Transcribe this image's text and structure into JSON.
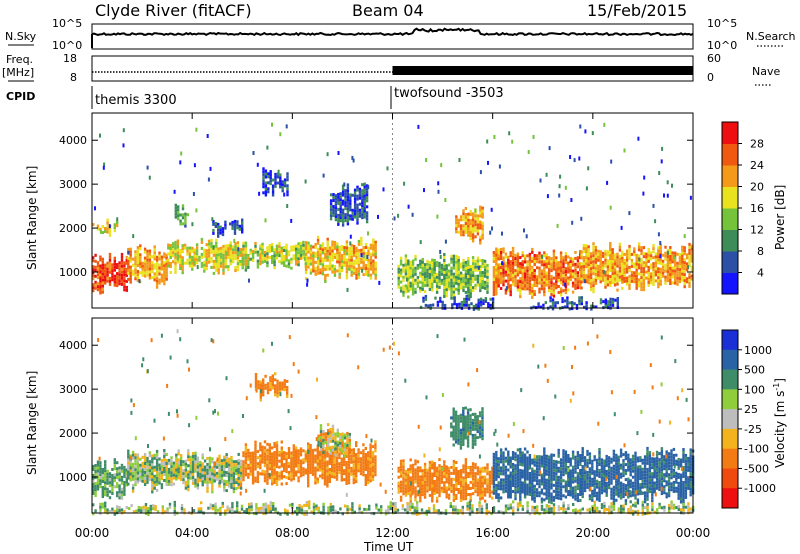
{
  "header": {
    "station": "Clyde River (fitACF)",
    "beam": "Beam 04",
    "date": "15/Feb/2015"
  },
  "left_labels": {
    "nsky": "N.Sky",
    "freq": "Freq.",
    "freq_unit": "[MHz]",
    "cpid": "CPID"
  },
  "right_labels": {
    "nsearch": "N.Search",
    "nave": "Nave"
  },
  "noise_axis": {
    "top": "10^5",
    "bottom": "10^0"
  },
  "freq_axis": {
    "top": "18",
    "bottom": "8"
  },
  "nave_axis": {
    "top": "60",
    "bottom": "0"
  },
  "cpid_segments": [
    {
      "label": "themis 3300",
      "start_hour": 0,
      "end_hour": 12
    },
    {
      "label": "twofsound -3503",
      "start_hour": 12,
      "end_hour": 24
    }
  ],
  "power_colorbar": {
    "label": "Power [dB]",
    "ticks": [
      "4",
      "8",
      "12",
      "16",
      "20",
      "24",
      "28"
    ],
    "colors": [
      "#1414ff",
      "#2c50a6",
      "#3e8c57",
      "#74c33a",
      "#e9e21f",
      "#f39a1a",
      "#f05a10",
      "#ee1010"
    ]
  },
  "velocity_colorbar": {
    "label": "Velocity [m s^-1]",
    "ticks": [
      "1000",
      "500",
      "100",
      "25",
      "-25",
      "-100",
      "-500",
      "-1000"
    ],
    "colors": [
      "#1a2fd6",
      "#2a63a5",
      "#3f8c68",
      "#8fce3a",
      "#bdbdbd",
      "#f3b31c",
      "#f37b13",
      "#f04a0e",
      "#ee1010"
    ]
  },
  "xaxis_title": "Time UT",
  "ylabel": "Slant Range [km]",
  "chart_data": [
    {
      "type": "heatmap",
      "title": "Power",
      "xlabel": "Time UT",
      "ylabel": "Slant Range [km]",
      "x_ticks": [
        "00:00",
        "04:00",
        "08:00",
        "12:00",
        "16:00",
        "20:00",
        "00:00"
      ],
      "y_ticks": [
        "1000",
        "2000",
        "3000",
        "4000"
      ],
      "xlim_hours": [
        0,
        24
      ],
      "ylim_km": [
        180,
        4620
      ],
      "colorbar_range_db": [
        0,
        32
      ],
      "bands": [
        {
          "start_h": 0.0,
          "end_h": 1.4,
          "range_lo": 650,
          "range_hi": 1300,
          "value": 28
        },
        {
          "start_h": 1.4,
          "end_h": 3.0,
          "range_lo": 800,
          "range_hi": 1500,
          "value": 22
        },
        {
          "start_h": 3.0,
          "end_h": 6.0,
          "range_lo": 1100,
          "range_hi": 1650,
          "value": 18
        },
        {
          "start_h": 6.0,
          "end_h": 8.5,
          "range_lo": 1200,
          "range_hi": 1600,
          "value": 16
        },
        {
          "start_h": 8.5,
          "end_h": 11.3,
          "range_lo": 950,
          "range_hi": 1700,
          "value": 20
        },
        {
          "start_h": 12.2,
          "end_h": 15.8,
          "range_lo": 550,
          "range_hi": 1300,
          "value": 14
        },
        {
          "start_h": 14.5,
          "end_h": 15.6,
          "range_lo": 1800,
          "range_hi": 2400,
          "value": 22
        },
        {
          "start_h": 16.0,
          "end_h": 19.5,
          "range_lo": 550,
          "range_hi": 1450,
          "value": 24
        },
        {
          "start_h": 19.5,
          "end_h": 24.0,
          "range_lo": 700,
          "range_hi": 1550,
          "value": 22
        },
        {
          "start_h": 6.8,
          "end_h": 7.8,
          "range_lo": 2900,
          "range_hi": 3250,
          "value": 6
        },
        {
          "start_h": 3.3,
          "end_h": 3.8,
          "range_lo": 2200,
          "range_hi": 2450,
          "value": 12
        },
        {
          "start_h": 0.0,
          "end_h": 1.0,
          "range_lo": 1950,
          "range_hi": 2100,
          "value": 18
        },
        {
          "start_h": 4.8,
          "end_h": 6.0,
          "range_lo": 1950,
          "range_hi": 2150,
          "value": 6
        },
        {
          "start_h": 9.5,
          "end_h": 11.0,
          "range_lo": 2200,
          "range_hi": 2900,
          "value": 6
        },
        {
          "start_h": 13.0,
          "end_h": 16.0,
          "range_lo": 180,
          "range_hi": 350,
          "value": 6
        },
        {
          "start_h": 17.5,
          "end_h": 21.0,
          "range_lo": 180,
          "range_hi": 320,
          "value": 6
        }
      ]
    },
    {
      "type": "heatmap",
      "title": "Velocity",
      "xlabel": "Time UT",
      "ylabel": "Slant Range [km]",
      "x_ticks": [
        "00:00",
        "04:00",
        "08:00",
        "12:00",
        "16:00",
        "20:00",
        "00:00"
      ],
      "y_ticks": [
        "1000",
        "2000",
        "3000",
        "4000"
      ],
      "xlim_hours": [
        0,
        24
      ],
      "ylim_km": [
        180,
        4620
      ],
      "colorbar_range_ms": [
        -1000,
        1000
      ],
      "bands": [
        {
          "start_h": 0.0,
          "end_h": 1.4,
          "range_lo": 650,
          "range_hi": 1300,
          "value": 150
        },
        {
          "start_h": 1.4,
          "end_h": 6.0,
          "range_lo": 800,
          "range_hi": 1500,
          "value": 60
        },
        {
          "start_h": 6.0,
          "end_h": 11.3,
          "range_lo": 950,
          "range_hi": 1700,
          "value": -200
        },
        {
          "start_h": 9.0,
          "end_h": 10.3,
          "range_lo": 1600,
          "range_hi": 2100,
          "value": 0
        },
        {
          "start_h": 6.5,
          "end_h": 7.8,
          "range_lo": 2900,
          "range_hi": 3250,
          "value": -200
        },
        {
          "start_h": 12.2,
          "end_h": 16.0,
          "range_lo": 550,
          "range_hi": 1300,
          "value": -200
        },
        {
          "start_h": 14.3,
          "end_h": 15.6,
          "range_lo": 1800,
          "range_hi": 2500,
          "value": 400
        },
        {
          "start_h": 16.0,
          "end_h": 24.0,
          "range_lo": 550,
          "range_hi": 1550,
          "value": 600
        },
        {
          "start_h": 0.0,
          "end_h": 24.0,
          "range_lo": 180,
          "range_hi": 330,
          "value": 60
        }
      ]
    }
  ]
}
